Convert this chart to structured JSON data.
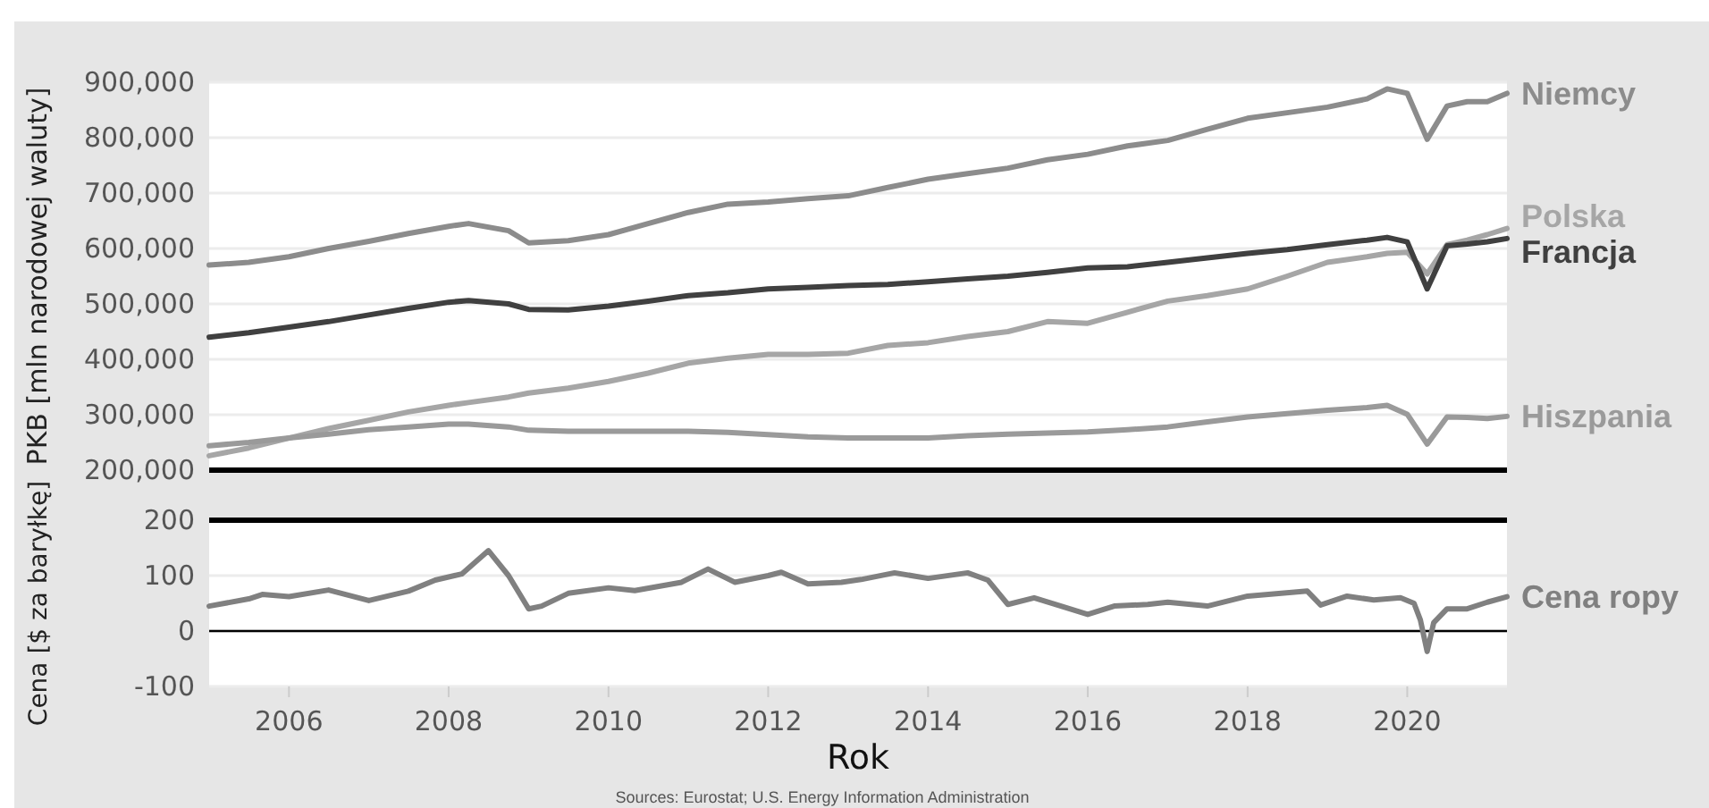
{
  "chart_data": [
    {
      "type": "line",
      "ylabel": "PKB [mln narodowej waluty]",
      "tick_labels": "y",
      "grid": "y",
      "xlim": [
        "2005-01",
        "2021-04"
      ],
      "xticks": [
        "2006",
        "2008",
        "2010",
        "2012",
        "2014",
        "2016",
        "2018",
        "2020"
      ],
      "ylim": [
        200000,
        900000
      ],
      "yticks": [
        {
          "value": 200000,
          "label": "200,000"
        },
        {
          "value": 300000,
          "label": "300,000"
        },
        {
          "value": 400000,
          "label": "400,000"
        },
        {
          "value": 500000,
          "label": "500,000"
        },
        {
          "value": 600000,
          "label": "600,000"
        },
        {
          "value": 700000,
          "label": "700,000"
        },
        {
          "value": 800000,
          "label": "800,000"
        },
        {
          "value": 900000,
          "label": "900,000"
        }
      ],
      "x": [
        "2005-01",
        "2005-07",
        "2006-01",
        "2006-07",
        "2007-01",
        "2007-07",
        "2008-01",
        "2008-04",
        "2008-10",
        "2009-01",
        "2009-07",
        "2010-01",
        "2010-07",
        "2011-01",
        "2011-07",
        "2012-01",
        "2012-07",
        "2013-01",
        "2013-07",
        "2014-01",
        "2014-07",
        "2015-01",
        "2015-07",
        "2016-01",
        "2016-07",
        "2017-01",
        "2017-07",
        "2018-01",
        "2018-07",
        "2019-01",
        "2019-07",
        "2019-10",
        "2020-01",
        "2020-04",
        "2020-07",
        "2020-10",
        "2021-01",
        "2021-04"
      ],
      "series": [
        {
          "name": "Niemcy",
          "color": "#8c8c8c",
          "values": [
            570000,
            575000,
            585000,
            600000,
            613000,
            627000,
            640000,
            645000,
            632000,
            610000,
            614000,
            625000,
            645000,
            665000,
            680000,
            684000,
            690000,
            695000,
            710000,
            725000,
            735000,
            745000,
            760000,
            770000,
            785000,
            795000,
            815000,
            835000,
            845000,
            855000,
            870000,
            888000,
            880000,
            797000,
            857000,
            865000,
            865000,
            880000
          ]
        },
        {
          "name": "Polska",
          "color": "#a6a6a6",
          "values": [
            226000,
            240000,
            258000,
            275000,
            290000,
            305000,
            317000,
            322000,
            332000,
            339000,
            348000,
            360000,
            375000,
            393000,
            402000,
            409000,
            409000,
            411000,
            425000,
            430000,
            441000,
            450000,
            468000,
            465000,
            485000,
            505000,
            515000,
            527000,
            550000,
            575000,
            585000,
            591000,
            593000,
            554000,
            607000,
            615000,
            625000,
            636000
          ]
        },
        {
          "name": "Francja",
          "color": "#404040",
          "values": [
            440000,
            448000,
            458000,
            468000,
            480000,
            492000,
            503000,
            506000,
            500000,
            490000,
            489000,
            496000,
            505000,
            515000,
            520000,
            527000,
            530000,
            533000,
            535000,
            540000,
            545000,
            550000,
            557000,
            565000,
            567000,
            575000,
            583000,
            591000,
            598000,
            607000,
            615000,
            620000,
            612000,
            527000,
            605000,
            608000,
            612000,
            618000
          ]
        },
        {
          "name": "Hiszpania",
          "color": "#9a9a9a",
          "values": [
            244000,
            250000,
            258000,
            265000,
            273000,
            278000,
            283000,
            283000,
            278000,
            272000,
            270000,
            270000,
            270000,
            270000,
            268000,
            264000,
            260000,
            258000,
            258000,
            258000,
            262000,
            265000,
            267000,
            269000,
            273000,
            278000,
            287000,
            296000,
            302000,
            308000,
            313000,
            317000,
            301000,
            247000,
            296000,
            295000,
            293000,
            297000
          ]
        }
      ]
    },
    {
      "type": "line",
      "ylabel": "Cena [$ za baryłkę]",
      "xlabel": "Rok",
      "grid": "y",
      "annotations": [
        "Sources: Eurostat; U.S. Energy Information Administration"
      ],
      "xlim": [
        "2005-01",
        "2021-04"
      ],
      "xticks": [
        "2006",
        "2008",
        "2010",
        "2012",
        "2014",
        "2016",
        "2018",
        "2020"
      ],
      "ylim": [
        -100,
        200
      ],
      "yticks": [
        -100,
        0,
        100,
        200
      ],
      "ref_lines": [
        {
          "axis": "y",
          "value": 0,
          "color": "#000000"
        }
      ],
      "x": [
        "2005-01",
        "2005-07",
        "2005-09",
        "2006-01",
        "2006-07",
        "2007-01",
        "2007-07",
        "2007-11",
        "2008-03",
        "2008-07",
        "2008-10",
        "2009-01",
        "2009-03",
        "2009-07",
        "2010-01",
        "2010-05",
        "2010-12",
        "2011-04",
        "2011-08",
        "2012-01",
        "2012-03",
        "2012-07",
        "2012-12",
        "2013-03",
        "2013-08",
        "2014-01",
        "2014-07",
        "2014-10",
        "2015-01",
        "2015-05",
        "2015-09",
        "2016-01",
        "2016-05",
        "2016-10",
        "2017-01",
        "2017-07",
        "2018-01",
        "2018-10",
        "2018-12",
        "2019-04",
        "2019-08",
        "2019-12",
        "2020-02",
        "2020-03",
        "2020-04",
        "2020-05",
        "2020-07",
        "2020-10",
        "2021-01",
        "2021-04"
      ],
      "series": [
        {
          "name": "Cena ropy",
          "color": "#808080",
          "values": [
            45,
            58,
            66,
            62,
            74,
            55,
            72,
            92,
            103,
            145,
            100,
            40,
            45,
            68,
            78,
            73,
            88,
            112,
            88,
            100,
            106,
            85,
            88,
            93,
            105,
            95,
            105,
            92,
            48,
            60,
            45,
            30,
            45,
            48,
            52,
            45,
            63,
            72,
            47,
            63,
            56,
            60,
            50,
            20,
            -37,
            15,
            40,
            40,
            52,
            62
          ]
        }
      ]
    }
  ]
}
